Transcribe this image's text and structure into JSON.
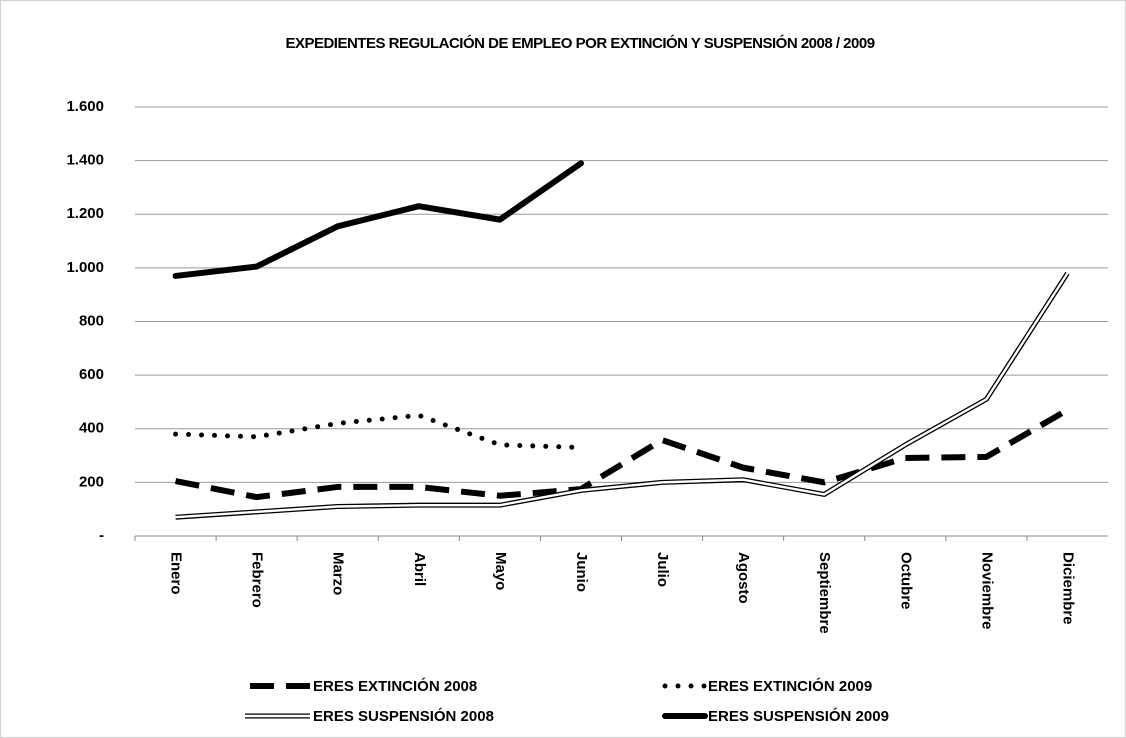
{
  "chart_data": {
    "type": "line",
    "title": "EXPEDIENTES REGULACIÓN DE EMPLEO POR EXTINCIÓN Y SUSPENSIÓN 2008 / 2009",
    "categories": [
      "Enero",
      "Febrero",
      "Marzo",
      "Abril",
      "Mayo",
      "Junio",
      "Julio",
      "Agosto",
      "Septiembre",
      "Octubre",
      "Noviembre",
      "Diciembre"
    ],
    "ylim": [
      0,
      1600
    ],
    "yticks": [
      {
        "value": 0,
        "label": "-"
      },
      200,
      400,
      600,
      800,
      {
        "value": 1000,
        "label": "1.000"
      },
      {
        "value": 1200,
        "label": "1.200"
      },
      {
        "value": 1400,
        "label": "1.400"
      },
      {
        "value": 1600,
        "label": "1.600"
      }
    ],
    "grid": true,
    "legend": "bottom",
    "series": [
      {
        "name": "ERES EXTINCIÓN 2008",
        "color": "#000000",
        "dash": "dashed",
        "values": [
          205,
          145,
          183,
          183,
          150,
          175,
          358,
          255,
          200,
          291,
          295,
          470
        ]
      },
      {
        "name": "ERES EXTINCIÓN 2009",
        "color": "#000000",
        "dash": "dotted",
        "values": [
          380,
          370,
          420,
          450,
          340,
          330,
          null,
          null,
          null,
          null,
          null,
          null
        ]
      },
      {
        "name": "ERES SUSPENSIÓN 2008",
        "color": "#000000",
        "dash": "double",
        "values": [
          70,
          90,
          110,
          115,
          115,
          170,
          200,
          210,
          155,
          340,
          510,
          980
        ]
      },
      {
        "name": "ERES SUSPENSIÓN 2009",
        "color": "#000000",
        "dash": "solid",
        "values": [
          970,
          1005,
          1155,
          1230,
          1180,
          1390,
          null,
          null,
          null,
          null,
          null,
          null
        ]
      }
    ]
  }
}
